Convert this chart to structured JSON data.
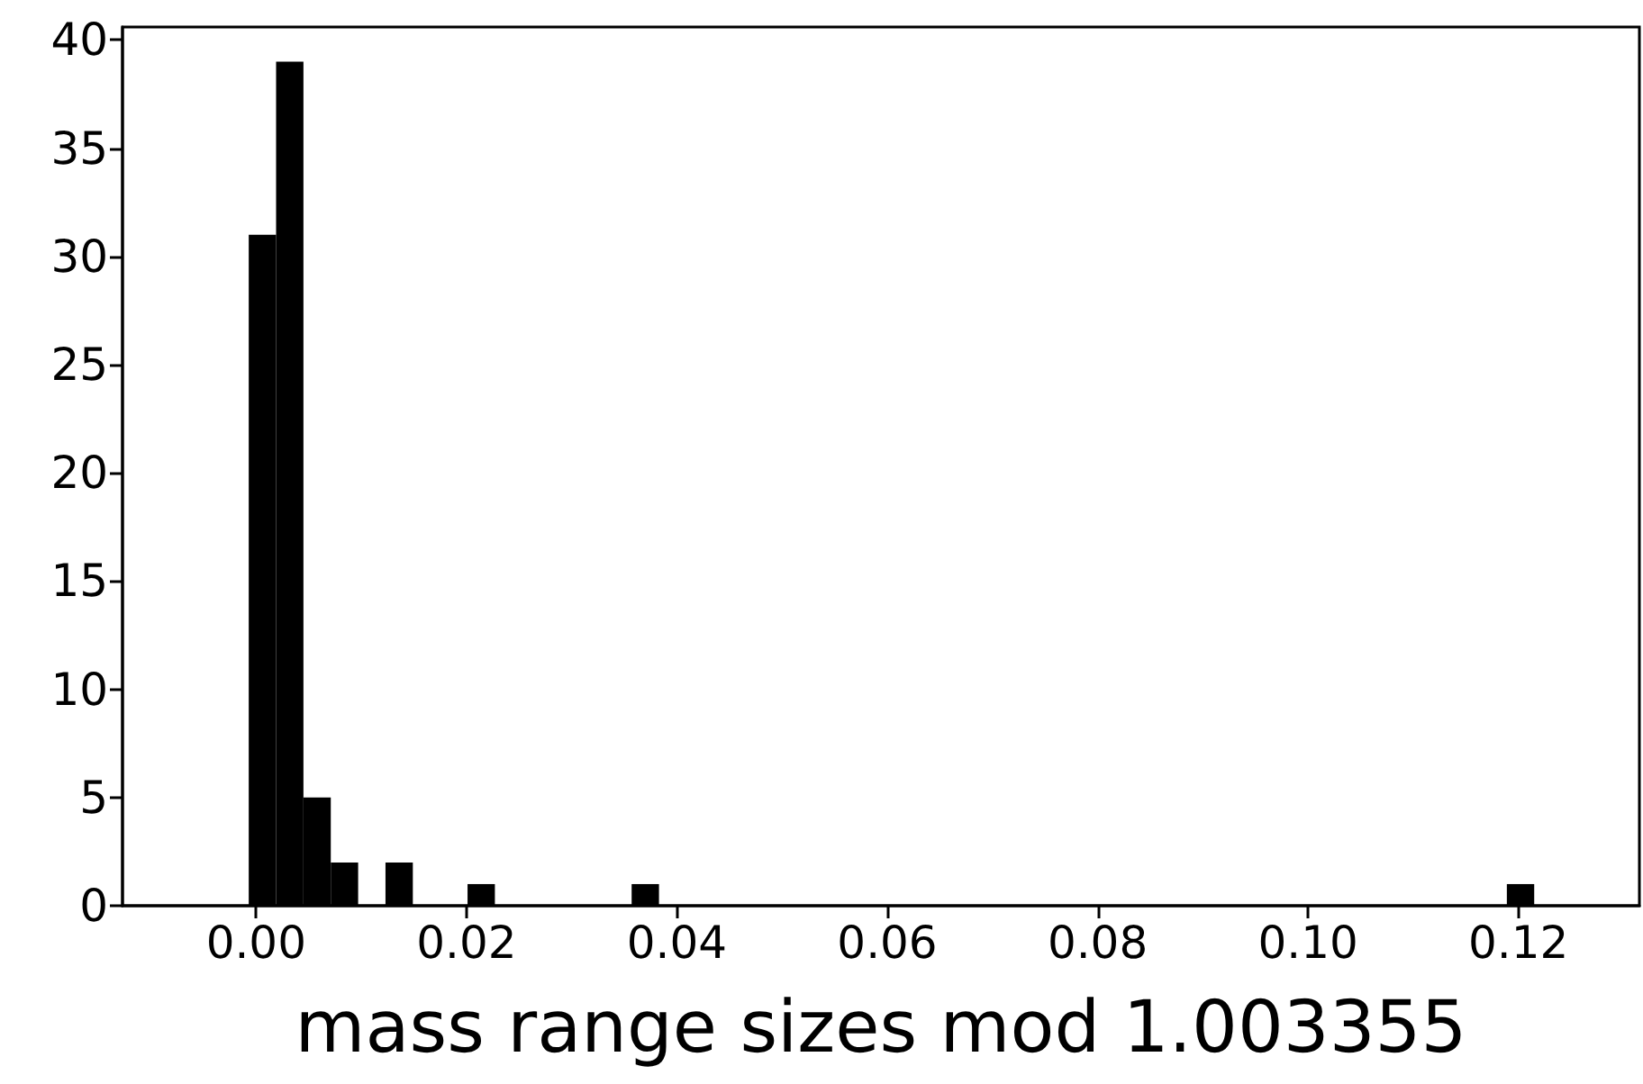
{
  "chart_data": {
    "type": "histogram",
    "xlabel": "mass range sizes mod 1.003355",
    "bins": [
      -0.0007,
      0.0019,
      0.0045,
      0.0071,
      0.0097,
      0.0123,
      0.0149,
      0.0175,
      0.0201,
      0.0227,
      0.0253,
      0.0279,
      0.0305,
      0.0331,
      0.0357,
      0.0383,
      0.0409,
      0.0435,
      0.0461,
      0.0487,
      0.0513,
      0.0539,
      0.0565,
      0.0591,
      0.0617,
      0.0643,
      0.0669,
      0.0695,
      0.0721,
      0.0747,
      0.0773,
      0.0799,
      0.0825,
      0.0851,
      0.0877,
      0.0903,
      0.0929,
      0.0955,
      0.0981,
      0.1007,
      0.1033,
      0.1059,
      0.1085,
      0.1111,
      0.1137,
      0.1163,
      0.1189,
      0.1215
    ],
    "values": [
      31,
      39,
      5,
      2,
      0,
      2,
      0,
      0,
      1,
      0,
      0,
      0,
      0,
      0,
      1,
      0,
      0,
      0,
      0,
      0,
      0,
      0,
      0,
      0,
      0,
      0,
      0,
      0,
      0,
      0,
      0,
      0,
      0,
      0,
      0,
      0,
      0,
      0,
      0,
      0,
      0,
      0,
      0,
      0,
      0,
      0,
      1
    ],
    "color": "#000000",
    "xlim": [
      -0.0127,
      0.1315
    ],
    "xticks": [
      {
        "value": 0,
        "label": "0.00"
      },
      {
        "value": 0.02,
        "label": "0.02"
      },
      {
        "value": 0.04,
        "label": "0.04"
      },
      {
        "value": 0.06,
        "label": "0.06"
      },
      {
        "value": 0.08,
        "label": "0.08"
      },
      {
        "value": 0.1,
        "label": "0.10"
      },
      {
        "value": 0.12,
        "label": "0.12"
      }
    ],
    "ylim": [
      0,
      40.6
    ],
    "yticks": [
      0,
      5,
      10,
      15,
      20,
      25,
      30,
      35,
      40
    ],
    "grid": false
  }
}
